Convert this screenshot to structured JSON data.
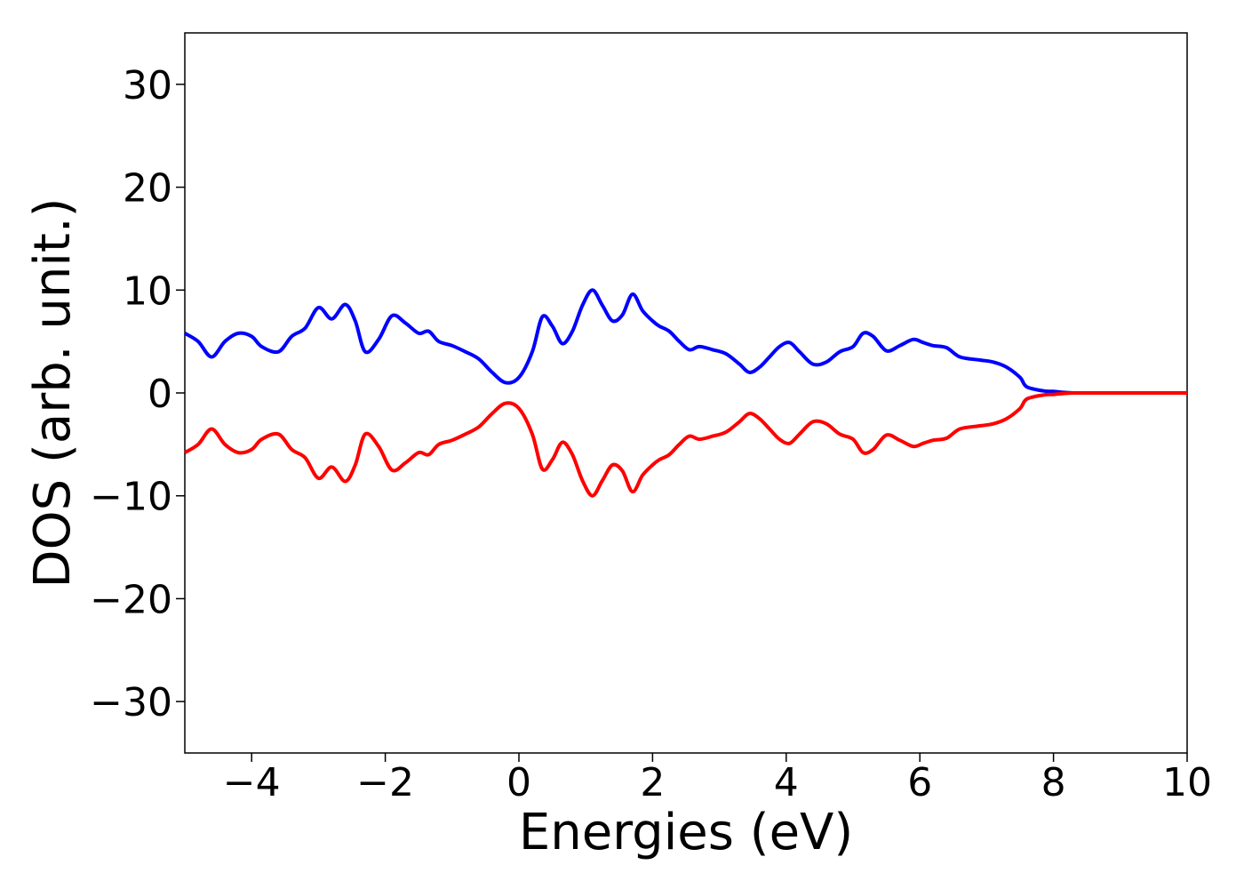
{
  "chart_data": {
    "type": "line",
    "title": "",
    "xlabel": "Energies (eV)",
    "ylabel": "DOS (arb. unit.)",
    "xlim": [
      -5,
      10
    ],
    "ylim": [
      -35,
      35
    ],
    "xticks": [
      -4,
      -2,
      0,
      2,
      4,
      6,
      8,
      10
    ],
    "xtick_labels": [
      "−4",
      "−2",
      "0",
      "2",
      "4",
      "6",
      "8",
      "10"
    ],
    "yticks": [
      30,
      20,
      10,
      0,
      -10,
      -20,
      -30
    ],
    "ytick_labels": [
      "30",
      "20",
      "10",
      "0",
      "−10",
      "−20",
      "−30"
    ],
    "grid": false,
    "legend": "none",
    "series": [
      {
        "color": "#0000ff",
        "x": [
          -5.0,
          -4.8,
          -4.6,
          -4.4,
          -4.2,
          -4.0,
          -3.85,
          -3.6,
          -3.4,
          -3.2,
          -3.0,
          -2.8,
          -2.6,
          -2.45,
          -2.3,
          -2.1,
          -1.9,
          -1.7,
          -1.5,
          -1.35,
          -1.2,
          -1.0,
          -0.8,
          -0.6,
          -0.4,
          -0.2,
          0.0,
          0.2,
          0.35,
          0.5,
          0.65,
          0.8,
          0.95,
          1.1,
          1.25,
          1.4,
          1.55,
          1.7,
          1.85,
          2.0,
          2.1,
          2.25,
          2.4,
          2.55,
          2.7,
          2.9,
          3.1,
          3.3,
          3.45,
          3.6,
          3.75,
          3.9,
          4.05,
          4.2,
          4.4,
          4.6,
          4.8,
          5.0,
          5.15,
          5.3,
          5.5,
          5.7,
          5.9,
          6.05,
          6.2,
          6.4,
          6.6,
          6.9,
          7.1,
          7.3,
          7.5,
          7.6,
          7.85,
          8.0,
          8.15,
          8.3,
          8.5,
          8.7,
          9.0,
          9.5,
          10.0
        ],
        "y": [
          5.8,
          5.0,
          3.5,
          5.0,
          5.8,
          5.5,
          4.5,
          4.0,
          5.5,
          6.3,
          8.3,
          7.2,
          8.6,
          7.0,
          4.0,
          5.2,
          7.5,
          6.8,
          5.8,
          6.0,
          5.0,
          4.6,
          4.0,
          3.3,
          2.0,
          1.0,
          1.5,
          4.0,
          7.4,
          6.5,
          4.8,
          6.0,
          8.5,
          10.0,
          8.5,
          7.0,
          7.6,
          9.6,
          8.0,
          7.0,
          6.5,
          6.0,
          5.0,
          4.2,
          4.5,
          4.2,
          3.8,
          2.8,
          2.0,
          2.5,
          3.5,
          4.5,
          4.9,
          4.0,
          2.8,
          3.0,
          4.0,
          4.5,
          5.8,
          5.5,
          4.1,
          4.6,
          5.2,
          4.9,
          4.6,
          4.4,
          3.5,
          3.2,
          3.0,
          2.5,
          1.5,
          0.6,
          0.2,
          0.15,
          0.05,
          0.0,
          0.0,
          0.0,
          0.0,
          0.0,
          0.0
        ]
      },
      {
        "color": "#ff0000",
        "x": [
          -5.0,
          -4.8,
          -4.6,
          -4.4,
          -4.2,
          -4.0,
          -3.85,
          -3.6,
          -3.4,
          -3.2,
          -3.0,
          -2.8,
          -2.6,
          -2.45,
          -2.3,
          -2.1,
          -1.9,
          -1.7,
          -1.5,
          -1.35,
          -1.2,
          -1.0,
          -0.8,
          -0.6,
          -0.4,
          -0.2,
          0.0,
          0.2,
          0.35,
          0.5,
          0.65,
          0.8,
          0.95,
          1.1,
          1.25,
          1.4,
          1.55,
          1.7,
          1.85,
          2.0,
          2.1,
          2.25,
          2.4,
          2.55,
          2.7,
          2.9,
          3.1,
          3.3,
          3.45,
          3.6,
          3.75,
          3.9,
          4.05,
          4.2,
          4.4,
          4.6,
          4.8,
          5.0,
          5.15,
          5.3,
          5.5,
          5.7,
          5.9,
          6.05,
          6.2,
          6.4,
          6.6,
          6.9,
          7.1,
          7.3,
          7.5,
          7.6,
          7.85,
          8.0,
          8.15,
          8.3,
          8.5,
          8.7,
          9.0,
          9.5,
          10.0
        ],
        "y": [
          -5.8,
          -5.0,
          -3.5,
          -5.0,
          -5.8,
          -5.5,
          -4.5,
          -4.0,
          -5.5,
          -6.3,
          -8.3,
          -7.2,
          -8.6,
          -7.0,
          -4.0,
          -5.2,
          -7.5,
          -6.8,
          -5.8,
          -6.0,
          -5.0,
          -4.6,
          -4.0,
          -3.3,
          -2.0,
          -1.0,
          -1.5,
          -4.0,
          -7.4,
          -6.5,
          -4.8,
          -6.0,
          -8.5,
          -10.0,
          -8.5,
          -7.0,
          -7.6,
          -9.6,
          -8.0,
          -7.0,
          -6.5,
          -6.0,
          -5.0,
          -4.2,
          -4.5,
          -4.2,
          -3.8,
          -2.8,
          -2.0,
          -2.5,
          -3.5,
          -4.5,
          -4.9,
          -4.0,
          -2.8,
          -3.0,
          -4.0,
          -4.5,
          -5.8,
          -5.5,
          -4.1,
          -4.6,
          -5.2,
          -4.9,
          -4.6,
          -4.4,
          -3.5,
          -3.2,
          -3.0,
          -2.5,
          -1.5,
          -0.6,
          -0.2,
          -0.15,
          -0.05,
          0.0,
          0.0,
          0.0,
          0.0,
          0.0,
          0.0
        ]
      }
    ]
  }
}
